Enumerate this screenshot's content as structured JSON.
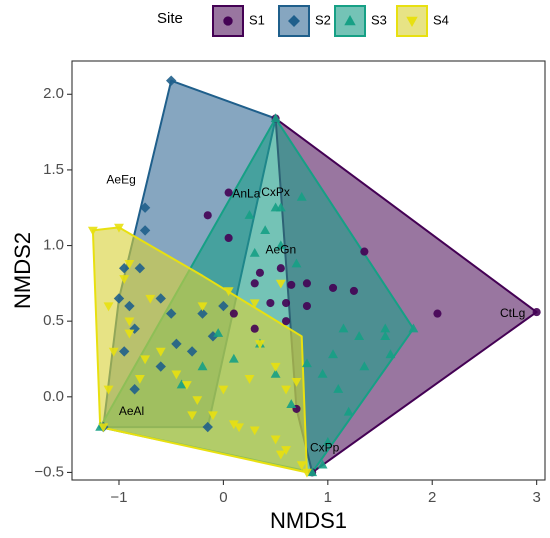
{
  "chart_data": {
    "type": "scatter",
    "xlabel": "NMDS1",
    "ylabel": "NMDS2",
    "xlim": [
      -1.45,
      3.08
    ],
    "ylim": [
      -0.55,
      2.22
    ],
    "xticks": [
      -1,
      0,
      1,
      2,
      3
    ],
    "yticks": [
      -0.5,
      0.0,
      0.5,
      1.0,
      1.5,
      2.0
    ],
    "xtick_labels": [
      "−1",
      "0",
      "1",
      "2",
      "3"
    ],
    "ytick_labels": [
      "−0.5",
      "0.0",
      "0.5",
      "1.0",
      "1.5",
      "2.0"
    ],
    "grid": false,
    "legend": {
      "title": "Site",
      "position": "top"
    },
    "series": [
      {
        "name": "S1",
        "marker": "circle",
        "color": "#440154",
        "fill": "#5b2266",
        "hull": [
          [
            0.5,
            1.84
          ],
          [
            3.0,
            0.56
          ],
          [
            0.85,
            -0.5
          ],
          [
            0.7,
            -0.08
          ],
          [
            0.5,
            1.84
          ]
        ],
        "points": [
          [
            0.5,
            1.84
          ],
          [
            3.0,
            0.56
          ],
          [
            2.05,
            0.55
          ],
          [
            1.35,
            0.96
          ],
          [
            0.85,
            -0.5
          ],
          [
            0.35,
            0.82
          ],
          [
            0.55,
            0.85
          ],
          [
            0.3,
            0.75
          ],
          [
            0.65,
            0.74
          ],
          [
            0.8,
            0.75
          ],
          [
            1.05,
            0.72
          ],
          [
            1.25,
            0.7
          ],
          [
            0.45,
            0.62
          ],
          [
            0.6,
            0.62
          ],
          [
            0.8,
            0.6
          ],
          [
            0.3,
            0.45
          ],
          [
            0.6,
            0.5
          ],
          [
            0.05,
            1.05
          ],
          [
            -0.15,
            1.2
          ],
          [
            0.05,
            1.35
          ],
          [
            0.1,
            0.55
          ],
          [
            0.7,
            -0.08
          ]
        ]
      },
      {
        "name": "S2",
        "marker": "diamond",
        "color": "#1f5f8b",
        "fill": "#3b6f99",
        "hull": [
          [
            -0.5,
            2.09
          ],
          [
            0.5,
            1.84
          ],
          [
            -0.15,
            -0.2
          ],
          [
            -1.15,
            -0.2
          ],
          [
            -1.0,
            0.65
          ],
          [
            -0.5,
            2.09
          ]
        ],
        "points": [
          [
            -0.5,
            2.09
          ],
          [
            -0.75,
            1.25
          ],
          [
            -0.75,
            1.1
          ],
          [
            -0.95,
            0.85
          ],
          [
            -1.0,
            0.65
          ],
          [
            -0.9,
            0.6
          ],
          [
            -0.8,
            0.85
          ],
          [
            -0.85,
            0.45
          ],
          [
            -0.95,
            0.3
          ],
          [
            -0.6,
            0.65
          ],
          [
            -0.5,
            0.55
          ],
          [
            -0.45,
            0.35
          ],
          [
            -0.6,
            0.2
          ],
          [
            -0.85,
            0.05
          ],
          [
            -1.15,
            -0.2
          ],
          [
            -0.15,
            -0.2
          ],
          [
            -0.3,
            0.3
          ],
          [
            -0.2,
            0.55
          ],
          [
            0.0,
            0.6
          ],
          [
            -0.1,
            0.4
          ]
        ]
      },
      {
        "name": "S3",
        "marker": "triangle",
        "color": "#16a085",
        "fill": "#1f9e89",
        "hull": [
          [
            0.5,
            1.84
          ],
          [
            1.82,
            0.45
          ],
          [
            0.85,
            -0.5
          ],
          [
            -1.18,
            -0.2
          ],
          [
            0.5,
            1.84
          ]
        ],
        "points": [
          [
            0.5,
            1.84
          ],
          [
            1.82,
            0.45
          ],
          [
            0.85,
            -0.5
          ],
          [
            -1.18,
            -0.2
          ],
          [
            0.5,
            1.25
          ],
          [
            0.55,
            1.25
          ],
          [
            0.75,
            1.32
          ],
          [
            0.55,
            1.0
          ],
          [
            0.7,
            0.88
          ],
          [
            0.3,
            0.95
          ],
          [
            0.25,
            1.2
          ],
          [
            0.4,
            1.1
          ],
          [
            1.15,
            0.45
          ],
          [
            1.3,
            0.4
          ],
          [
            1.55,
            0.4
          ],
          [
            1.6,
            0.28
          ],
          [
            1.05,
            0.28
          ],
          [
            0.95,
            0.15
          ],
          [
            1.1,
            0.05
          ],
          [
            1.35,
            0.2
          ],
          [
            1.55,
            0.45
          ],
          [
            1.2,
            -0.1
          ],
          [
            0.8,
            0.22
          ],
          [
            0.65,
            -0.05
          ],
          [
            0.5,
            0.15
          ],
          [
            0.35,
            0.35
          ],
          [
            0.1,
            0.25
          ],
          [
            -0.2,
            0.2
          ],
          [
            -0.4,
            0.08
          ],
          [
            -0.05,
            0.42
          ],
          [
            1.0,
            -0.3
          ],
          [
            0.95,
            -0.45
          ]
        ]
      },
      {
        "name": "S4",
        "marker": "triangle-down",
        "color": "#e8e010",
        "fill": "#d9d23a",
        "hull": [
          [
            -1.25,
            1.1
          ],
          [
            -1.0,
            1.12
          ],
          [
            -0.2,
            0.8
          ],
          [
            0.75,
            0.4
          ],
          [
            0.8,
            -0.5
          ],
          [
            -1.18,
            -0.2
          ],
          [
            -1.25,
            1.1
          ]
        ],
        "points": [
          [
            -1.25,
            1.1
          ],
          [
            -1.0,
            1.12
          ],
          [
            -0.9,
            0.88
          ],
          [
            -0.95,
            0.78
          ],
          [
            -1.1,
            0.6
          ],
          [
            -1.05,
            0.3
          ],
          [
            -0.7,
            0.65
          ],
          [
            -0.9,
            0.5
          ],
          [
            -0.9,
            0.42
          ],
          [
            -1.1,
            0.05
          ],
          [
            -1.15,
            -0.2
          ],
          [
            -0.3,
            -0.12
          ],
          [
            -0.1,
            -0.12
          ],
          [
            0.1,
            -0.18
          ],
          [
            0.3,
            -0.22
          ],
          [
            0.5,
            -0.28
          ],
          [
            0.6,
            -0.35
          ],
          [
            0.55,
            -0.38
          ],
          [
            0.75,
            -0.45
          ],
          [
            0.8,
            -0.5
          ],
          [
            0.15,
            -0.2
          ],
          [
            -0.6,
            0.3
          ],
          [
            -0.45,
            0.15
          ],
          [
            -0.35,
            0.08
          ],
          [
            -0.25,
            -0.02
          ],
          [
            0.0,
            0.05
          ],
          [
            0.25,
            0.12
          ],
          [
            0.5,
            0.2
          ],
          [
            0.6,
            0.05
          ],
          [
            0.7,
            0.1
          ],
          [
            0.35,
            0.35
          ],
          [
            -0.2,
            0.6
          ],
          [
            0.05,
            0.7
          ],
          [
            0.3,
            0.62
          ],
          [
            0.55,
            0.75
          ],
          [
            -0.8,
            0.12
          ],
          [
            -0.75,
            0.25
          ]
        ]
      }
    ],
    "annotations": [
      {
        "text": "AeEg",
        "x": -0.98,
        "y": 1.43
      },
      {
        "text": "AnLa",
        "x": 0.22,
        "y": 1.34
      },
      {
        "text": "CxPx",
        "x": 0.5,
        "y": 1.35
      },
      {
        "text": "AeGn",
        "x": 0.55,
        "y": 0.97
      },
      {
        "text": "CtLg",
        "x": 2.77,
        "y": 0.55
      },
      {
        "text": "AeAl",
        "x": -0.88,
        "y": -0.1
      },
      {
        "text": "CxPp",
        "x": 0.97,
        "y": -0.34
      }
    ]
  }
}
